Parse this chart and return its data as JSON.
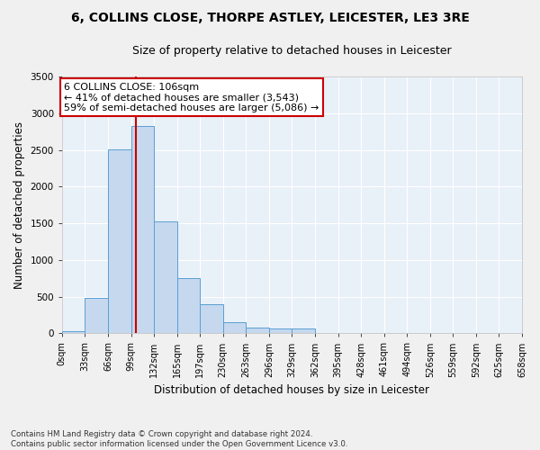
{
  "title_line1": "6, COLLINS CLOSE, THORPE ASTLEY, LEICESTER, LE3 3RE",
  "title_line2": "Size of property relative to detached houses in Leicester",
  "xlabel": "Distribution of detached houses by size in Leicester",
  "ylabel": "Number of detached properties",
  "bar_values": [
    25,
    480,
    2510,
    2820,
    1520,
    750,
    390,
    145,
    75,
    60,
    60,
    0,
    0,
    0,
    0,
    0,
    0,
    0,
    0,
    0
  ],
  "bin_labels": [
    "0sqm",
    "33sqm",
    "66sqm",
    "99sqm",
    "132sqm",
    "165sqm",
    "197sqm",
    "230sqm",
    "263sqm",
    "296sqm",
    "329sqm",
    "362sqm",
    "395sqm",
    "428sqm",
    "461sqm",
    "494sqm",
    "526sqm",
    "559sqm",
    "592sqm",
    "625sqm",
    "658sqm"
  ],
  "bar_color": "#c5d8ee",
  "bar_edge_color": "#5a9fd4",
  "vline_color": "#cc0000",
  "annotation_text": "6 COLLINS CLOSE: 106sqm\n← 41% of detached houses are smaller (3,543)\n59% of semi-detached houses are larger (5,086) →",
  "annotation_box_color": "#cc0000",
  "ylim": [
    0,
    3500
  ],
  "yticks": [
    0,
    500,
    1000,
    1500,
    2000,
    2500,
    3000,
    3500
  ],
  "bg_color": "#e8f0f8",
  "grid_color": "#ffffff",
  "fig_bg_color": "#f0f0f0",
  "footnote": "Contains HM Land Registry data © Crown copyright and database right 2024.\nContains public sector information licensed under the Open Government Licence v3.0.",
  "title_fontsize": 10,
  "subtitle_fontsize": 9,
  "label_fontsize": 8.5,
  "tick_fontsize": 7.5,
  "annot_fontsize": 8
}
